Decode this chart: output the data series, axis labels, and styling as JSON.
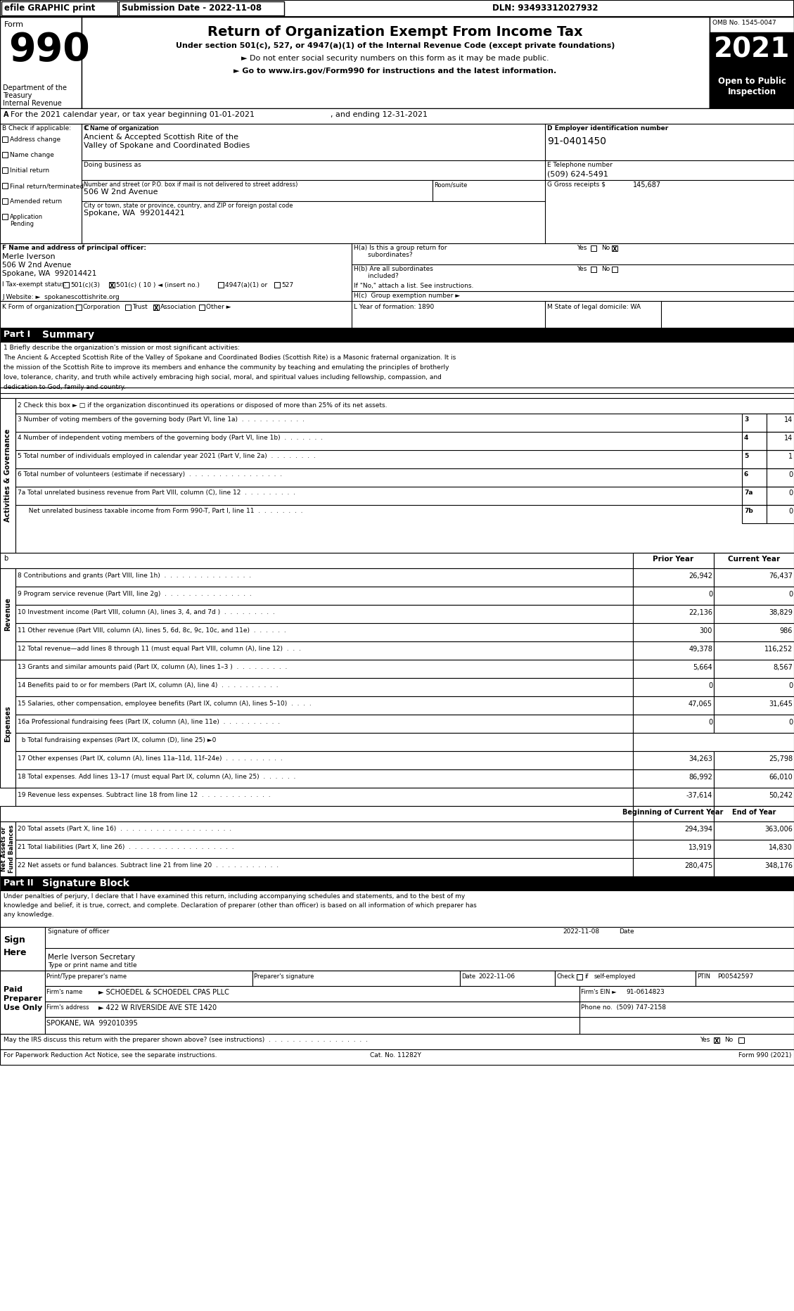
{
  "main_title": "Return of Organization Exempt From Income Tax",
  "subtitle1": "Under section 501(c), 527, or 4947(a)(1) of the Internal Revenue Code (except private foundations)",
  "subtitle2": "► Do not enter social security numbers on this form as it may be made public.",
  "subtitle3": "► Go to www.irs.gov/Form990 for instructions and the latest information.",
  "omb": "OMB No. 1545-0047",
  "year": "2021",
  "open_text": "Open to Public\nInspection",
  "activities_label": "Activities & Governance",
  "revenue_label": "Revenue",
  "expenses_label": "Expenses",
  "net_assets_label": "Net Assets or\nFund Balances"
}
